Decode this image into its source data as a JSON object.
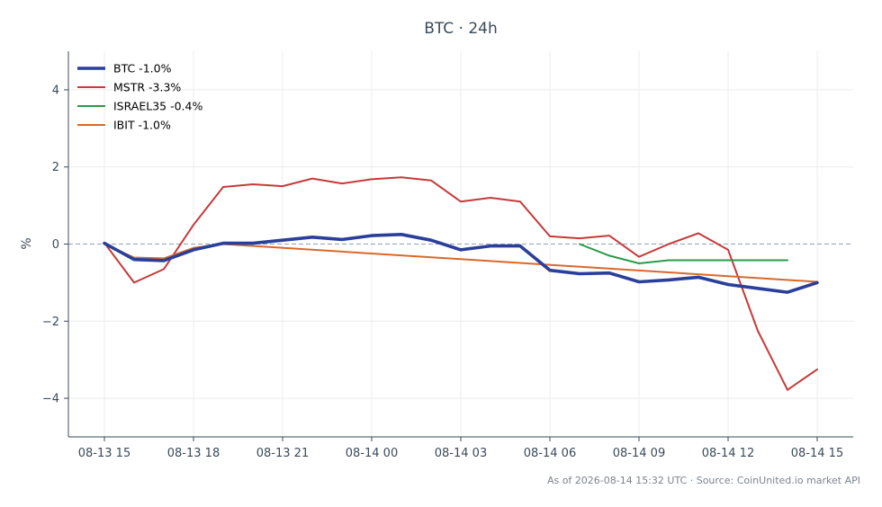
{
  "chart_data": {
    "type": "line",
    "title": "BTC · 24h",
    "xlabel": "",
    "ylabel": "%",
    "x_ticks": [
      "08-13 15",
      "08-13 18",
      "08-13 21",
      "08-14 00",
      "08-14 03",
      "08-14 06",
      "08-14 09",
      "08-14 12",
      "08-14 15"
    ],
    "y_ticks": [
      "4",
      "2",
      "0",
      "−2",
      "−4"
    ],
    "y_tick_values": [
      4,
      2,
      0,
      -2,
      -4
    ],
    "xlim": [
      "08-13 15:00",
      "08-14 15:00"
    ],
    "ylim": [
      -5,
      5
    ],
    "grid": true,
    "zero_line": true,
    "legend_position": "top-left",
    "series": [
      {
        "name": "BTC -1.0%",
        "color": "#2a3f9a",
        "x": [
          "08-13 15:00",
          "08-13 16:00",
          "08-13 17:00",
          "08-13 18:00",
          "08-13 19:00",
          "08-13 20:00",
          "08-13 21:00",
          "08-13 22:00",
          "08-13 23:00",
          "08-14 00:00",
          "08-14 01:00",
          "08-14 02:00",
          "08-14 03:00",
          "08-14 04:00",
          "08-14 05:00",
          "08-14 06:00",
          "08-14 07:00",
          "08-14 08:00",
          "08-14 09:00",
          "08-14 10:00",
          "08-14 11:00",
          "08-14 12:00",
          "08-14 13:00",
          "08-14 14:00",
          "08-14 15:00"
        ],
        "values": [
          0.02,
          -0.4,
          -0.43,
          -0.15,
          0.02,
          0.02,
          0.1,
          0.18,
          0.12,
          0.22,
          0.25,
          0.1,
          -0.15,
          -0.05,
          -0.05,
          -0.68,
          -0.77,
          -0.75,
          -0.98,
          -0.93,
          -0.86,
          -1.05,
          -1.15,
          -1.25,
          -1.0
        ]
      },
      {
        "name": "MSTR -3.3%",
        "color": "#c63a3a",
        "x": [
          "08-13 15:00",
          "08-13 16:00",
          "08-13 17:00",
          "08-13 18:00",
          "08-13 19:00",
          "08-13 20:00",
          "08-13 21:00",
          "08-13 22:00",
          "08-13 23:00",
          "08-14 00:00",
          "08-14 01:00",
          "08-14 02:00",
          "08-14 03:00",
          "08-14 04:00",
          "08-14 05:00",
          "08-14 06:00",
          "08-14 07:00",
          "08-14 08:00",
          "08-14 09:00",
          "08-14 10:00",
          "08-14 11:00",
          "08-14 12:00",
          "08-14 13:00",
          "08-14 14:00",
          "08-14 15:00"
        ],
        "values": [
          0.03,
          -1.0,
          -0.65,
          0.5,
          1.48,
          1.55,
          1.5,
          1.7,
          1.57,
          1.68,
          1.73,
          1.65,
          1.1,
          1.2,
          1.1,
          0.2,
          0.15,
          0.22,
          -0.33,
          0.0,
          0.28,
          -0.15,
          -2.25,
          -3.78,
          -3.25
        ]
      },
      {
        "name": "ISRAEL35 -0.4%",
        "color": "#2a9a4a",
        "x": [
          "08-14 07:00",
          "08-14 08:00",
          "08-14 09:00",
          "08-14 10:00",
          "08-14 11:00",
          "08-14 12:00",
          "08-14 13:00",
          "08-14 14:00"
        ],
        "values": [
          0.0,
          -0.3,
          -0.5,
          -0.42,
          -0.42,
          -0.42,
          -0.42,
          -0.42
        ]
      },
      {
        "name": "IBIT -1.0%",
        "color": "#d8692a",
        "x": [
          "08-13 15:00",
          "08-13 16:00",
          "08-13 17:00",
          "08-13 18:00",
          "08-13 19:00",
          "08-14 15:00"
        ],
        "values": [
          0.0,
          -0.35,
          -0.37,
          -0.1,
          0.0,
          -0.98
        ]
      }
    ]
  },
  "footer": "As of 2026-08-14 15:32 UTC · Source: CoinUnited.io market API"
}
